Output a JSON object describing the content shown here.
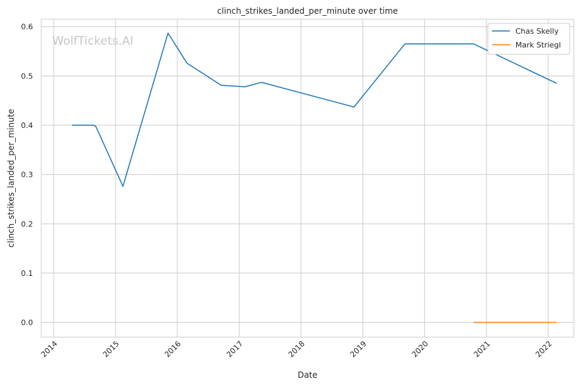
{
  "watermark": "WolfTickets.AI",
  "chart_data": {
    "type": "line",
    "title": "clinch_strikes_landed_per_minute over time",
    "xlabel": "Date",
    "ylabel": "clinch_strikes_landed_per_minute",
    "xlim": [
      "2013-10-19",
      "2022-06-01"
    ],
    "ylim": [
      -0.03,
      0.615
    ],
    "x_ticks": [
      "2014",
      "2015",
      "2016",
      "2017",
      "2018",
      "2019",
      "2020",
      "2021",
      "2022"
    ],
    "y_ticks": [
      "0.0",
      "0.1",
      "0.2",
      "0.3",
      "0.4",
      "0.5",
      "0.6"
    ],
    "grid": true,
    "legend_position": "top-right",
    "series": [
      {
        "name": "Chas Skelly",
        "color": "#1f77b4",
        "points": [
          {
            "x": "2014-04-19",
            "y": 0.4
          },
          {
            "x": "2014-08-23",
            "y": 0.4
          },
          {
            "x": "2014-09-06",
            "y": 0.398
          },
          {
            "x": "2015-02-14",
            "y": 0.276
          },
          {
            "x": "2015-11-07",
            "y": 0.587
          },
          {
            "x": "2016-02-27",
            "y": 0.526
          },
          {
            "x": "2016-09-17",
            "y": 0.481
          },
          {
            "x": "2017-02-04",
            "y": 0.478
          },
          {
            "x": "2017-05-13",
            "y": 0.487
          },
          {
            "x": "2018-11-10",
            "y": 0.437
          },
          {
            "x": "2019-09-07",
            "y": 0.565
          },
          {
            "x": "2020-10-17",
            "y": 0.565
          },
          {
            "x": "2022-02-19",
            "y": 0.485
          }
        ]
      },
      {
        "name": "Mark Striegl",
        "color": "#ff7f0e",
        "points": [
          {
            "x": "2020-10-17",
            "y": 0.0
          },
          {
            "x": "2022-02-19",
            "y": 0.0
          }
        ]
      }
    ]
  }
}
